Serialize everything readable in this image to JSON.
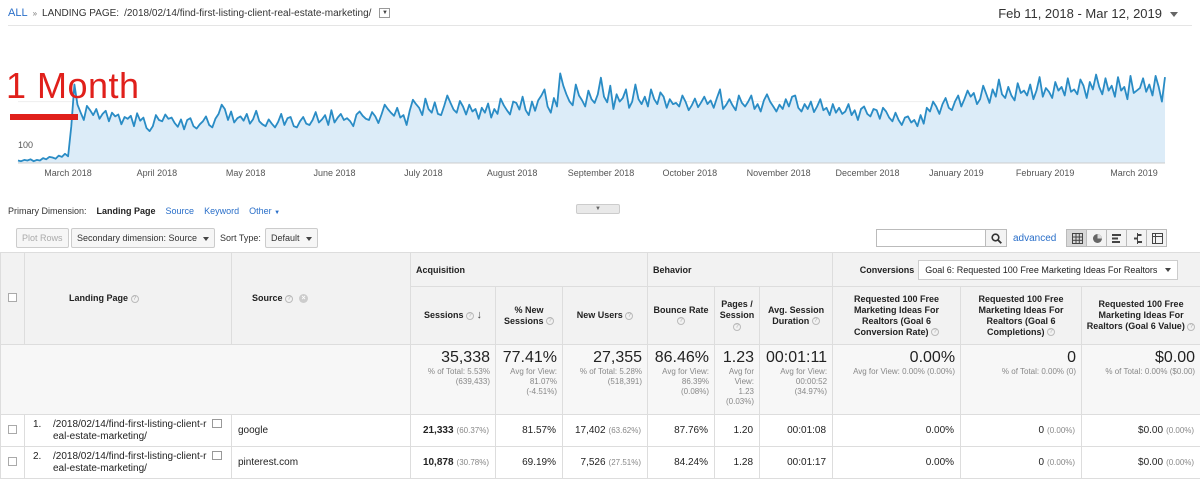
{
  "header": {
    "all_label": "ALL",
    "separator": "»",
    "dimension_label": "LANDING PAGE:",
    "path": "/2018/02/14/find-first-listing-client-real-estate-marketing/",
    "date_range": "Feb 11, 2018 - Mar 12, 2019"
  },
  "overlay": {
    "text": "1 Month",
    "color": "#e0201b"
  },
  "chart_data": {
    "type": "area",
    "y_tick_label": "100",
    "ylim": [
      0,
      220
    ],
    "x_tick_labels": [
      "March 2018",
      "April 2018",
      "May 2018",
      "June 2018",
      "July 2018",
      "August 2018",
      "September 2018",
      "October 2018",
      "November 2018",
      "December 2018",
      "January 2019",
      "February 2019",
      "March 2019"
    ],
    "series": [
      {
        "color": "#2a8cc5",
        "fill": "#dcecf8",
        "values": [
          4,
          3,
          5,
          4,
          6,
          3,
          5,
          4,
          8,
          6,
          10,
          9,
          7,
          12,
          10,
          15,
          11,
          60,
          128,
          95,
          82,
          70,
          93,
          86,
          78,
          88,
          72,
          80,
          85,
          68,
          82,
          76,
          79,
          63,
          75,
          72,
          77,
          60,
          81,
          69,
          74,
          57,
          52,
          60,
          78,
          70,
          68,
          79,
          72,
          74,
          65,
          59,
          71,
          55,
          70,
          73,
          60,
          56,
          63,
          68,
          76,
          62,
          58,
          72,
          80,
          95,
          88,
          70,
          84,
          66,
          73,
          76,
          69,
          80,
          64,
          71,
          85,
          68,
          63,
          60,
          71,
          64,
          58,
          67,
          80,
          62,
          73,
          75,
          60,
          58,
          68,
          75,
          64,
          62,
          70,
          83,
          66,
          71,
          78,
          62,
          86,
          66,
          74,
          80,
          70,
          73,
          68,
          60,
          79,
          84,
          77,
          72,
          70,
          83,
          76,
          65,
          79,
          95,
          88,
          82,
          77,
          90,
          74,
          78,
          62,
          85,
          103,
          96,
          90,
          78,
          105,
          88,
          82,
          99,
          80,
          78,
          93,
          110,
          98,
          87,
          82,
          101,
          92,
          79,
          95,
          84,
          88,
          72,
          90,
          82,
          97,
          74,
          88,
          80,
          105,
          94,
          86,
          79,
          100,
          98,
          87,
          108,
          86,
          78,
          100,
          85,
          102,
          110,
          120,
          92,
          82,
          106,
          92,
          146,
          126,
          112,
          100,
          94,
          128,
          110,
          102,
          92,
          118,
          104,
          98,
          112,
          139,
          108,
          99,
          126,
          88,
          112,
          100,
          106,
          120,
          90,
          100,
          128,
          104,
          96,
          108,
          92,
          120,
          104,
          96,
          115,
          108,
          90,
          104,
          96,
          98,
          92,
          110,
          100,
          86,
          94,
          105,
          91,
          99,
          108,
          96,
          102,
          90,
          106,
          120,
          88,
          95,
          104,
          94,
          86,
          110,
          98,
          92,
          100,
          110,
          88,
          96,
          84,
          102,
          112,
          100,
          92,
          84,
          95,
          88,
          104,
          92,
          108,
          110,
          90,
          84,
          96,
          88,
          100,
          83,
          92,
          104,
          86,
          90,
          78,
          96,
          82,
          90,
          80,
          84,
          96,
          78,
          86,
          70,
          88,
          92,
          80,
          76,
          88,
          86,
          72,
          90,
          84,
          74,
          68,
          82,
          70,
          62,
          74,
          76,
          66,
          70,
          60,
          78,
          64,
          90,
          84,
          100,
          92,
          80,
          96,
          106,
          90,
          86,
          100,
          110,
          92,
          104,
          118,
          108,
          114,
          96,
          104,
          126,
          112,
          98,
          120,
          108,
          136,
          112,
          106,
          124,
          110,
          102,
          130,
          114,
          118,
          110,
          128,
          104,
          118,
          140,
          108,
          122,
          116,
          106,
          132,
          118,
          124,
          110,
          138,
          116,
          120,
          112,
          136,
          126,
          106,
          132,
          120,
          144,
          124,
          112,
          138,
          118,
          126,
          108,
          140,
          118,
          124,
          104,
          142,
          114,
          118,
          122,
          138,
          116,
          128,
          110,
          142,
          124,
          100,
          140
        ]
      }
    ]
  },
  "dimension_row": {
    "label": "Primary Dimension:",
    "active": "Landing Page",
    "options": [
      "Source",
      "Keyword",
      "Other"
    ]
  },
  "toolbar": {
    "plot_rows": "Plot Rows",
    "secondary_dimension": "Secondary dimension: Source",
    "sort_type_label": "Sort Type:",
    "sort_type_value": "Default",
    "search_placeholder": "",
    "advanced": "advanced"
  },
  "table": {
    "col_landing_page": "Landing Page",
    "col_source": "Source",
    "group_acquisition": "Acquisition",
    "group_behavior": "Behavior",
    "group_conversions": "Conversions",
    "goal_select": "Goal 6: Requested 100 Free Marketing Ideas For Realtors",
    "col_sessions": "Sessions",
    "col_new_sessions": "% New Sessions",
    "col_new_users": "New Users",
    "col_bounce_rate": "Bounce Rate",
    "col_pages_session": "Pages / Session",
    "col_avg_duration": "Avg. Session Duration",
    "col_goal_rate": "Requested 100 Free Marketing Ideas For Realtors (Goal 6 Conversion Rate)",
    "col_goal_completions": "Requested 100 Free Marketing Ideas For Realtors (Goal 6 Completions)",
    "col_goal_value": "Requested 100 Free Marketing Ideas For Realtors (Goal 6 Value)",
    "totals": {
      "sessions": "35,338",
      "sessions_sub": "% of Total: 5.53% (639,433)",
      "new_sessions": "77.41%",
      "new_sessions_sub": "Avg for View: 81.07% (-4.51%)",
      "new_users": "27,355",
      "new_users_sub": "% of Total: 5.28% (518,391)",
      "bounce_rate": "86.46%",
      "bounce_rate_sub": "Avg for View: 86.39% (0.08%)",
      "pages_session": "1.23",
      "pages_session_sub": "Avg for View: 1.23 (0.03%)",
      "avg_duration": "00:01:11",
      "avg_duration_sub": "Avg for View: 00:00:52 (34.97%)",
      "goal_rate": "0.00%",
      "goal_rate_sub": "Avg for View: 0.00% (0.00%)",
      "goal_completions": "0",
      "goal_completions_sub": "% of Total: 0.00% (0)",
      "goal_value": "$0.00",
      "goal_value_sub": "% of Total: 0.00% ($0.00)"
    },
    "rows": [
      {
        "index": "1.",
        "page": "/2018/02/14/find-first-listing-client-real-estate-marketing/",
        "source": "google",
        "sessions": "21,333",
        "sessions_pct": "(60.37%)",
        "new_sessions": "81.57%",
        "new_users": "17,402",
        "new_users_pct": "(63.62%)",
        "bounce_rate": "87.76%",
        "pages_session": "1.20",
        "avg_duration": "00:01:08",
        "goal_rate": "0.00%",
        "goal_completions": "0",
        "goal_completions_pct": "(0.00%)",
        "goal_value": "$0.00",
        "goal_value_pct": "(0.00%)"
      },
      {
        "index": "2.",
        "page": "/2018/02/14/find-first-listing-client-real-estate-marketing/",
        "source": "pinterest.com",
        "sessions": "10,878",
        "sessions_pct": "(30.78%)",
        "new_sessions": "69.19%",
        "new_users": "7,526",
        "new_users_pct": "(27.51%)",
        "bounce_rate": "84.24%",
        "pages_session": "1.28",
        "avg_duration": "00:01:17",
        "goal_rate": "0.00%",
        "goal_completions": "0",
        "goal_completions_pct": "(0.00%)",
        "goal_value": "$0.00",
        "goal_value_pct": "(0.00%)"
      }
    ]
  }
}
